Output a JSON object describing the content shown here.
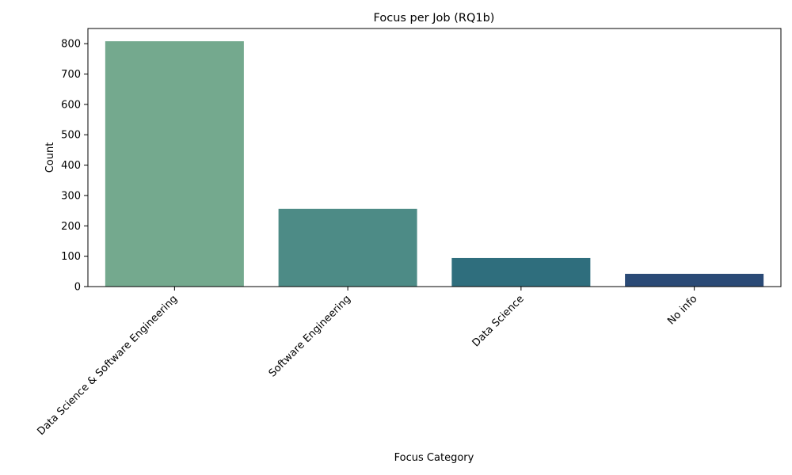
{
  "chart_data": {
    "type": "bar",
    "title": "Focus per Job (RQ1b)",
    "xlabel": "Focus Category",
    "ylabel": "Count",
    "categories": [
      "Data Science & Software Engineering",
      "Software Engineering",
      "Data Science",
      "No info"
    ],
    "values": [
      808,
      256,
      94,
      42
    ],
    "ylim": [
      0,
      850
    ],
    "yticks": [
      0,
      100,
      200,
      300,
      400,
      500,
      600,
      700,
      800
    ],
    "colors": [
      "#74a98e",
      "#4d8b86",
      "#2f6e7d",
      "#2a4a76"
    ],
    "grid": false,
    "legend": "none"
  }
}
